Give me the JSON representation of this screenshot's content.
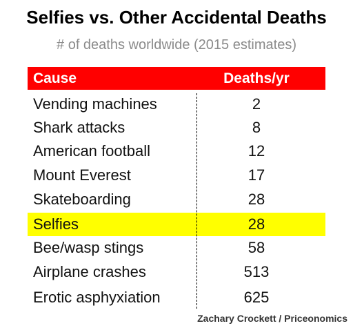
{
  "header": {
    "title": "Selfies vs. Other Accidental Deaths",
    "subtitle": "# of deaths worldwide (2015 estimates)"
  },
  "table": {
    "columns": [
      "Cause",
      "Deaths/yr"
    ],
    "rows": [
      [
        "Vending machines",
        2
      ],
      [
        "Shark attacks",
        8
      ],
      [
        "American football",
        12
      ],
      [
        "Mount Everest",
        17
      ],
      [
        "Skateboarding",
        28
      ],
      [
        "Selfies",
        28
      ],
      [
        "Bee/wasp stings",
        58
      ],
      [
        "Airplane crashes",
        513
      ],
      [
        "Erotic asphyxiation",
        625
      ]
    ]
  },
  "footer": {
    "credit": "Zachary Crockett / Priceonomics"
  }
}
